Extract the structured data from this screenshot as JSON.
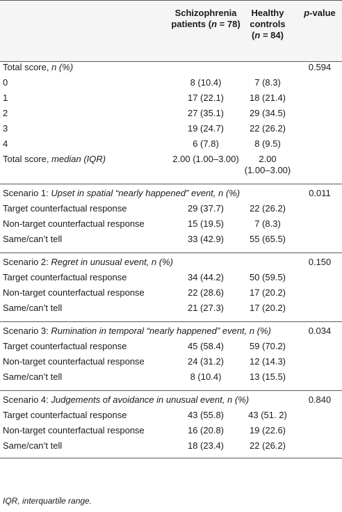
{
  "header": {
    "col2": [
      "Schizophrenia",
      "patients (n = 78)"
    ],
    "col3": [
      "Healthy",
      "controls",
      "(n = 84)"
    ],
    "col4": "p-value"
  },
  "total": {
    "title_plain": "Total score, ",
    "title_italic": "n (%)",
    "p": "0.594",
    "rows": [
      {
        "label": "0",
        "sz": "8 (10.4)",
        "hc": "7 (8.3)"
      },
      {
        "label": "1",
        "sz": "17 (22.1)",
        "hc": "18 (21.4)"
      },
      {
        "label": "2",
        "sz": "27 (35.1)",
        "hc": "29 (34.5)"
      },
      {
        "label": "3",
        "sz": "19 (24.7)",
        "hc": "22 (26.2)"
      },
      {
        "label": "4",
        "sz": "6 (7.8)",
        "hc": "8 (9.5)"
      }
    ],
    "median": {
      "label_plain": "Total score, ",
      "label_italic": "median (IQR)",
      "sz": "2.00 (1.00–3.00)",
      "hc1": "2.00",
      "hc2": "(1.00–3.00)"
    }
  },
  "scenarios": [
    {
      "plain": "Scenario 1: ",
      "italic": "Upset in spatial “nearly happened” event, ",
      "italic2": "n (%)",
      "p": "0.011",
      "rows": [
        {
          "label": "Target counterfactual response",
          "sz": "29 (37.7)",
          "hc": "22 (26.2)"
        },
        {
          "label": "Non-target counterfactual response",
          "sz": "15 (19.5)",
          "hc": "7 (8.3)"
        },
        {
          "label": "Same/can’t tell",
          "sz": "33 (42.9)",
          "hc": "55 (65.5)"
        }
      ]
    },
    {
      "plain": "Scenario 2: ",
      "italic": "Regret in unusual event, ",
      "italic2": "n (%)",
      "p": "0.150",
      "rows": [
        {
          "label": "Target counterfactual response",
          "sz": "34 (44.2)",
          "hc": "50 (59.5)"
        },
        {
          "label": "Non-target counterfactual response",
          "sz": "22 (28.6)",
          "hc": "17 (20.2)"
        },
        {
          "label": "Same/can’t tell",
          "sz": "21 (27.3)",
          "hc": "17 (20.2)"
        }
      ]
    },
    {
      "plain": "Scenario 3: ",
      "italic": "Rumination in temporal “nearly happened” event, ",
      "italic2": "n (%)",
      "p": "0.034",
      "rows": [
        {
          "label": "Target counterfactual response",
          "sz": "45 (58.4)",
          "hc": "59 (70.2)"
        },
        {
          "label": "Non-target counterfactual response",
          "sz": "24 (31.2)",
          "hc": "12 (14.3)"
        },
        {
          "label": "Same/can’t tell",
          "sz": "8 (10.4)",
          "hc": "13 (15.5)"
        }
      ]
    },
    {
      "plain": "Scenario 4: ",
      "italic": "Judgements of avoidance in unusual event, ",
      "italic2": "n (%)",
      "p": "0.840",
      "rows": [
        {
          "label": "Target counterfactual response",
          "sz": "43 (55.8)",
          "hc": "43 (51. 2)"
        },
        {
          "label": "Non-target counterfactual response",
          "sz": "16 (20.8)",
          "hc": "19 (22.6)"
        },
        {
          "label": "Same/can’t tell",
          "sz": "18 (23.4)",
          "hc": "22 (26.2)"
        }
      ]
    }
  ],
  "footnote": "IQR, interquartile range."
}
